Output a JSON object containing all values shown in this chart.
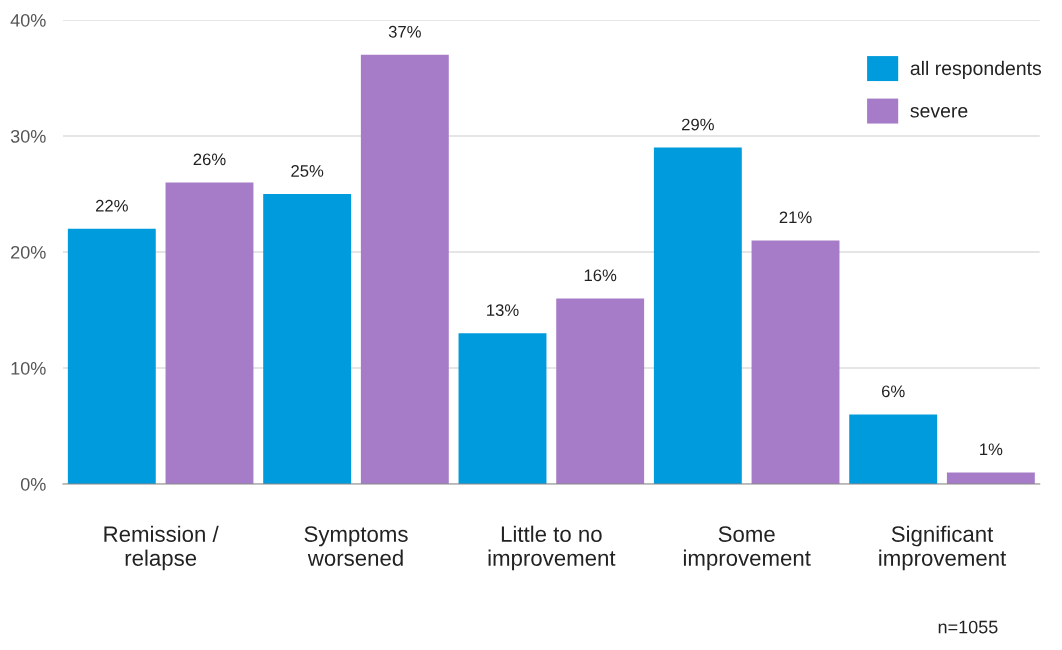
{
  "chart_data": {
    "type": "bar",
    "categories": [
      "Remission /\nrelapse",
      "Symptoms\nworsened",
      "Little to no\nimprovement",
      "Some\nimprovement",
      "Significant\nimprovement"
    ],
    "series": [
      {
        "name": "all respondents",
        "color": "#009bdc",
        "values": [
          22,
          25,
          13,
          29,
          6
        ],
        "value_labels": [
          "22%",
          "25%",
          "13%",
          "29%",
          "6%"
        ]
      },
      {
        "name": "severe",
        "color": "#a67cc8",
        "values": [
          26,
          37,
          16,
          21,
          1
        ],
        "value_labels": [
          "26%",
          "37%",
          "16%",
          "21%",
          "1%"
        ]
      }
    ],
    "ylim": [
      0,
      40
    ],
    "yticks": [
      {
        "value": 0,
        "label": "0%"
      },
      {
        "value": 10,
        "label": "10%"
      },
      {
        "value": 20,
        "label": "20%"
      },
      {
        "value": 30,
        "label": "30%"
      },
      {
        "value": 40,
        "label": "40%"
      }
    ],
    "grid": "y",
    "legend": "top right",
    "annotations": [
      "n=1055"
    ]
  }
}
